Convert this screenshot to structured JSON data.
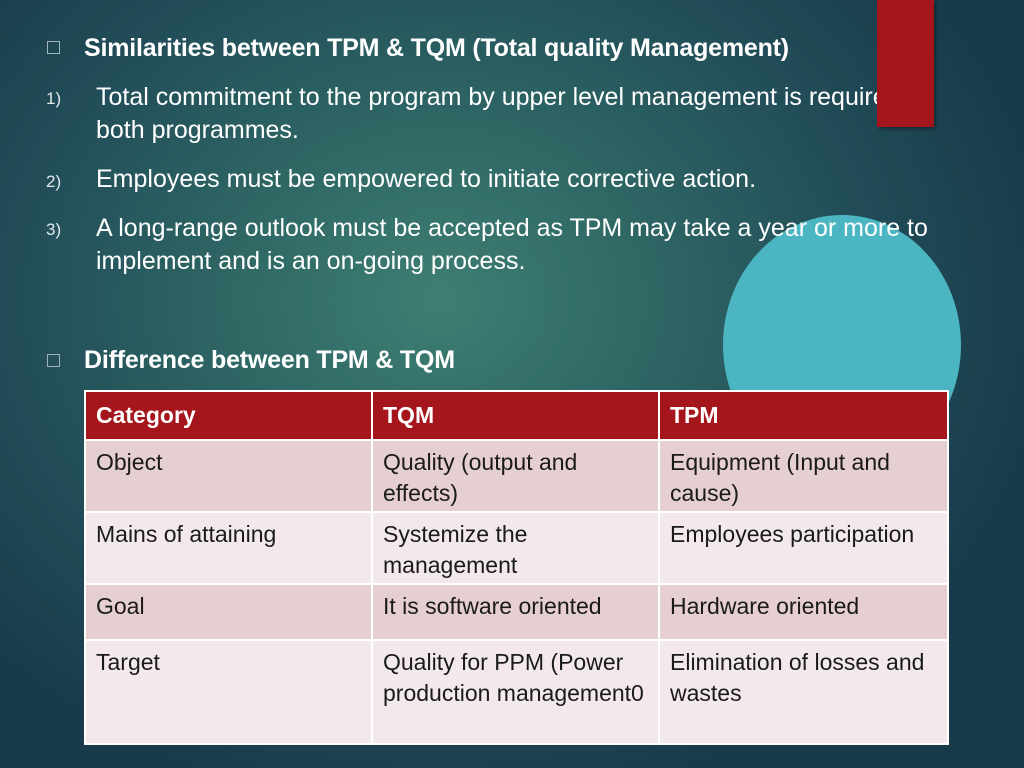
{
  "similarities": {
    "heading": "Similarities between TPM & TQM (Total quality Management)",
    "items": [
      {
        "num": "1)",
        "text": "Total commitment to the program by upper level management is required in both programmes."
      },
      {
        "num": "2)",
        "text": "Employees must be empowered to initiate corrective action."
      },
      {
        "num": "3)",
        "text": "A long-range outlook must be accepted as TPM may take a year or more to implement and is an on-going process."
      }
    ]
  },
  "difference": {
    "heading": "Difference between TPM & TQM",
    "columns": [
      "Category",
      "TQM",
      "TPM"
    ],
    "rows": [
      [
        "Object",
        "Quality (output and effects)",
        "Equipment (Input and cause)"
      ],
      [
        "Mains of attaining",
        "Systemize the management",
        "Employees participation"
      ],
      [
        "Goal",
        "It is software oriented",
        "Hardware oriented"
      ],
      [
        "Target",
        "Quality for PPM (Power production management0",
        "Elimination of losses and wastes"
      ]
    ]
  },
  "colors": {
    "accent_red": "#a5161c",
    "circle": "#4bb5c2",
    "row_odd": "#e6cfd0",
    "row_even": "#f3e9ea"
  }
}
